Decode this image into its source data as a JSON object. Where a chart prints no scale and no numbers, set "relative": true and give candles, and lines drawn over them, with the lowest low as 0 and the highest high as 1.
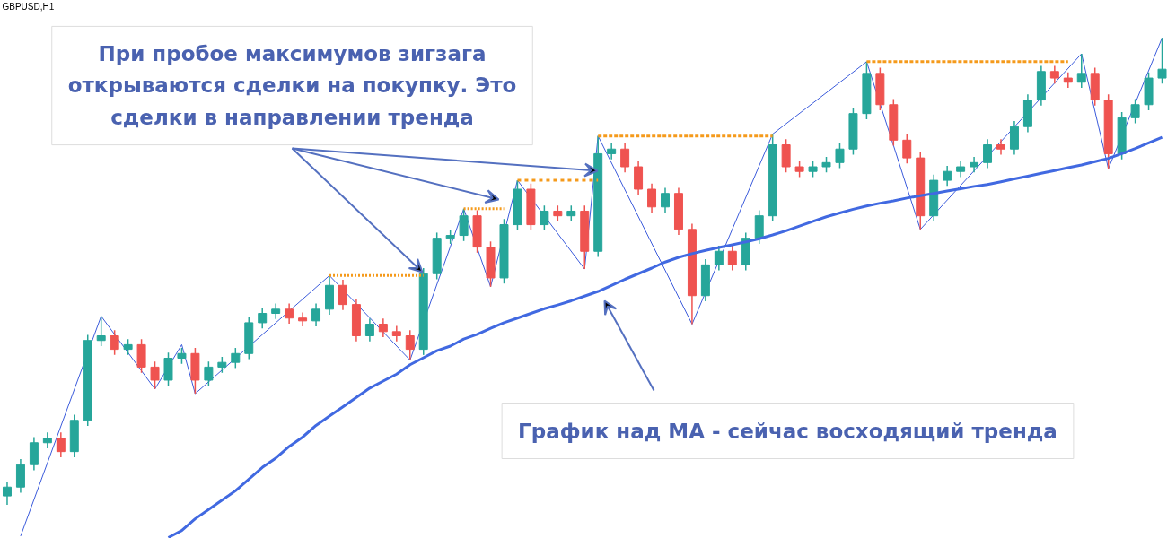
{
  "chart_data": {
    "type": "candlestick",
    "title": "GBPUSD,H1",
    "relative": true,
    "categories": [
      null,
      null,
      null,
      null,
      null,
      null,
      null,
      null,
      null,
      null,
      null,
      null,
      null,
      null,
      null,
      null,
      null,
      null,
      null,
      null,
      null,
      null,
      null,
      null,
      null,
      null,
      null,
      null,
      null,
      null,
      null,
      null,
      null,
      null,
      null,
      null,
      null,
      null,
      null,
      null,
      null,
      null,
      null,
      null,
      null,
      null,
      null,
      null,
      null,
      null,
      null,
      null,
      null,
      null,
      null,
      null,
      null,
      null,
      null,
      null,
      null,
      null,
      null,
      null,
      null,
      null,
      null,
      null,
      null,
      null,
      null,
      null,
      null,
      null,
      null,
      null,
      null,
      null,
      null,
      null,
      null,
      null,
      null,
      null,
      null,
      null,
      null
    ],
    "ohlc": [
      [
        0.019,
        0.048,
        0,
        0.038
      ],
      [
        0.038,
        0.098,
        0.026,
        0.086
      ],
      [
        0.086,
        0.145,
        0.074,
        0.133
      ],
      [
        0.133,
        0.155,
        0.121,
        0.143
      ],
      [
        0.143,
        0.155,
        0.102,
        0.114
      ],
      [
        0.114,
        0.193,
        0.102,
        0.181
      ],
      [
        0.181,
        0.364,
        0.169,
        0.352
      ],
      [
        0.352,
        0.404,
        0.34,
        0.362
      ],
      [
        0.362,
        0.374,
        0.321,
        0.333
      ],
      [
        0.333,
        0.355,
        0.321,
        0.343
      ],
      [
        0.343,
        0.355,
        0.283,
        0.295
      ],
      [
        0.295,
        0.307,
        0.248,
        0.267
      ],
      [
        0.267,
        0.326,
        0.255,
        0.314
      ],
      [
        0.314,
        0.336,
        0.302,
        0.324
      ],
      [
        0.324,
        0.336,
        0.238,
        0.267
      ],
      [
        0.267,
        0.307,
        0.255,
        0.295
      ],
      [
        0.295,
        0.317,
        0.283,
        0.305
      ],
      [
        0.305,
        0.336,
        0.293,
        0.324
      ],
      [
        0.324,
        0.402,
        0.312,
        0.39
      ],
      [
        0.39,
        0.422,
        0.378,
        0.41
      ],
      [
        0.41,
        0.431,
        0.398,
        0.419
      ],
      [
        0.419,
        0.431,
        0.388,
        0.4
      ],
      [
        0.4,
        0.412,
        0.382,
        0.394
      ],
      [
        0.394,
        0.431,
        0.382,
        0.419
      ],
      [
        0.419,
        0.491,
        0.407,
        0.47
      ],
      [
        0.47,
        0.482,
        0.417,
        0.429
      ],
      [
        0.429,
        0.441,
        0.35,
        0.362
      ],
      [
        0.362,
        0.399,
        0.35,
        0.387
      ],
      [
        0.387,
        0.399,
        0.359,
        0.371
      ],
      [
        0.371,
        0.383,
        0.35,
        0.362
      ],
      [
        0.362,
        0.374,
        0.31,
        0.333
      ],
      [
        0.333,
        0.507,
        0.321,
        0.495
      ],
      [
        0.495,
        0.583,
        0.483,
        0.571
      ],
      [
        0.571,
        0.589,
        0.559,
        0.577
      ],
      [
        0.577,
        0.634,
        0.565,
        0.619
      ],
      [
        0.619,
        0.631,
        0.54,
        0.552
      ],
      [
        0.552,
        0.564,
        0.467,
        0.486
      ],
      [
        0.486,
        0.612,
        0.474,
        0.6
      ],
      [
        0.6,
        0.695,
        0.588,
        0.676
      ],
      [
        0.676,
        0.688,
        0.588,
        0.6
      ],
      [
        0.6,
        0.641,
        0.588,
        0.629
      ],
      [
        0.629,
        0.641,
        0.607,
        0.619
      ],
      [
        0.619,
        0.641,
        0.607,
        0.629
      ],
      [
        0.629,
        0.641,
        0.505,
        0.543
      ],
      [
        0.543,
        0.79,
        0.531,
        0.752
      ],
      [
        0.752,
        0.774,
        0.74,
        0.762
      ],
      [
        0.762,
        0.774,
        0.712,
        0.724
      ],
      [
        0.724,
        0.736,
        0.664,
        0.676
      ],
      [
        0.676,
        0.688,
        0.626,
        0.638
      ],
      [
        0.638,
        0.679,
        0.626,
        0.667
      ],
      [
        0.667,
        0.679,
        0.578,
        0.59
      ],
      [
        0.59,
        0.602,
        0.387,
        0.448
      ],
      [
        0.448,
        0.526,
        0.436,
        0.514
      ],
      [
        0.514,
        0.555,
        0.502,
        0.543
      ],
      [
        0.543,
        0.555,
        0.502,
        0.514
      ],
      [
        0.514,
        0.583,
        0.502,
        0.571
      ],
      [
        0.571,
        0.631,
        0.559,
        0.619
      ],
      [
        0.619,
        0.794,
        0.607,
        0.771
      ],
      [
        0.771,
        0.783,
        0.712,
        0.724
      ],
      [
        0.724,
        0.736,
        0.702,
        0.714
      ],
      [
        0.714,
        0.736,
        0.702,
        0.724
      ],
      [
        0.724,
        0.745,
        0.712,
        0.733
      ],
      [
        0.733,
        0.774,
        0.721,
        0.762
      ],
      [
        0.762,
        0.85,
        0.75,
        0.838
      ],
      [
        0.838,
        0.949,
        0.826,
        0.924
      ],
      [
        0.924,
        0.936,
        0.845,
        0.857
      ],
      [
        0.857,
        0.869,
        0.769,
        0.781
      ],
      [
        0.781,
        0.793,
        0.731,
        0.743
      ],
      [
        0.743,
        0.755,
        0.59,
        0.619
      ],
      [
        0.619,
        0.707,
        0.607,
        0.695
      ],
      [
        0.695,
        0.726,
        0.683,
        0.714
      ],
      [
        0.714,
        0.736,
        0.702,
        0.724
      ],
      [
        0.724,
        0.745,
        0.712,
        0.733
      ],
      [
        0.733,
        0.783,
        0.721,
        0.771
      ],
      [
        0.771,
        0.783,
        0.75,
        0.762
      ],
      [
        0.762,
        0.822,
        0.75,
        0.81
      ],
      [
        0.81,
        0.879,
        0.798,
        0.867
      ],
      [
        0.867,
        0.94,
        0.855,
        0.928
      ],
      [
        0.928,
        0.94,
        0.902,
        0.914
      ],
      [
        0.914,
        0.926,
        0.893,
        0.905
      ],
      [
        0.905,
        0.966,
        0.893,
        0.924
      ],
      [
        0.924,
        0.936,
        0.855,
        0.867
      ],
      [
        0.867,
        0.879,
        0.72,
        0.752
      ],
      [
        0.752,
        0.841,
        0.74,
        0.829
      ],
      [
        0.829,
        0.869,
        0.817,
        0.857
      ],
      [
        0.857,
        0.926,
        0.845,
        0.914
      ],
      [
        0.914,
        1,
        0.902,
        0.933
      ]
    ],
    "colors": [
      "#26a69a",
      "#26a69a",
      "#26a69a",
      "#26a69a",
      "#ef5350",
      "#26a69a",
      "#26a69a",
      "#26a69a",
      "#ef5350",
      "#26a69a",
      "#ef5350",
      "#ef5350",
      "#26a69a",
      "#26a69a",
      "#ef5350",
      "#26a69a",
      "#26a69a",
      "#26a69a",
      "#26a69a",
      "#26a69a",
      "#26a69a",
      "#ef5350",
      "#ef5350",
      "#26a69a",
      "#26a69a",
      "#ef5350",
      "#ef5350",
      "#26a69a",
      "#ef5350",
      "#ef5350",
      "#ef5350",
      "#26a69a",
      "#26a69a",
      "#26a69a",
      "#26a69a",
      "#ef5350",
      "#ef5350",
      "#26a69a",
      "#26a69a",
      "#ef5350",
      "#26a69a",
      "#ef5350",
      "#26a69a",
      "#ef5350",
      "#26a69a",
      "#26a69a",
      "#ef5350",
      "#ef5350",
      "#ef5350",
      "#26a69a",
      "#ef5350",
      "#ef5350",
      "#26a69a",
      "#26a69a",
      "#ef5350",
      "#26a69a",
      "#26a69a",
      "#26a69a",
      "#ef5350",
      "#ef5350",
      "#26a69a",
      "#26a69a",
      "#26a69a",
      "#26a69a",
      "#26a69a",
      "#ef5350",
      "#ef5350",
      "#ef5350",
      "#ef5350",
      "#26a69a",
      "#26a69a",
      "#26a69a",
      "#26a69a",
      "#26a69a",
      "#ef5350",
      "#26a69a",
      "#26a69a",
      "#26a69a",
      "#ef5350",
      "#ef5350",
      "#26a69a",
      "#ef5350",
      "#ef5350",
      "#26a69a",
      "#26a69a",
      "#26a69a",
      "#26a69a"
    ],
    "series": [
      {
        "type": "line",
        "color": "#4169e1",
        "values": [
          null,
          null,
          null,
          null,
          null,
          null,
          null,
          null,
          null,
          null,
          null,
          null,
          -0.07,
          -0.055,
          -0.03,
          -0.01,
          0.01,
          0.03,
          0.055,
          0.08,
          0.1,
          0.125,
          0.145,
          0.17,
          0.19,
          0.21,
          0.23,
          0.25,
          0.265,
          0.28,
          0.3,
          0.315,
          0.33,
          0.34,
          0.355,
          0.365,
          0.378,
          0.39,
          0.4,
          0.41,
          0.42,
          0.428,
          0.437,
          0.447,
          0.457,
          0.47,
          0.483,
          0.495,
          0.507,
          0.52,
          0.53,
          0.538,
          0.545,
          0.551,
          0.557,
          0.563,
          0.57,
          0.578,
          0.587,
          0.597,
          0.607,
          0.617,
          0.625,
          0.633,
          0.64,
          0.646,
          0.651,
          0.657,
          0.662,
          0.667,
          0.672,
          0.677,
          0.682,
          0.686,
          0.692,
          0.698,
          0.704,
          0.71,
          0.716,
          0.722,
          0.728,
          0.735,
          0.742,
          0.752,
          0.763,
          0.775,
          0.787
        ]
      },
      {
        "type": "line",
        "color": "#3b5bdb",
        "values": [
          null,
          -0.067,
          null,
          null,
          null,
          null,
          null,
          0.404,
          null,
          null,
          null,
          0.248,
          null,
          0.343,
          0.238,
          null,
          null,
          null,
          null,
          null,
          null,
          null,
          null,
          null,
          0.491,
          null,
          null,
          null,
          null,
          null,
          0.31,
          null,
          null,
          null,
          0.634,
          null,
          0.467,
          null,
          0.695,
          null,
          null,
          null,
          null,
          0.505,
          0.79,
          null,
          null,
          null,
          null,
          null,
          null,
          0.387,
          null,
          null,
          null,
          null,
          null,
          0.794,
          null,
          null,
          null,
          null,
          null,
          null,
          0.949,
          null,
          null,
          null,
          0.59,
          null,
          null,
          null,
          null,
          null,
          null,
          null,
          null,
          null,
          null,
          null,
          0.966,
          null,
          0.72,
          null,
          null,
          null,
          1
        ]
      },
      {
        "type": "line",
        "color": "#f59a1b",
        "line_style": "dotted",
        "values": [
          null,
          null,
          null,
          null,
          null,
          null,
          null,
          null,
          null,
          null,
          null,
          null,
          null,
          null,
          null,
          null,
          null,
          null,
          null,
          null,
          null,
          null,
          null,
          null,
          0.491,
          0.491,
          0.491,
          0.491,
          0.491,
          0.491,
          0.491,
          0.491,
          null,
          null,
          null,
          null,
          null,
          null,
          null,
          null,
          null,
          null,
          null,
          null,
          null,
          null,
          null,
          null,
          null,
          null,
          null,
          null,
          null,
          null,
          null,
          null,
          null,
          null,
          null,
          null,
          null,
          null,
          null,
          null,
          null,
          null,
          null,
          null,
          null,
          null,
          null,
          null,
          null,
          null,
          null,
          null,
          null,
          null,
          null,
          null,
          null,
          null,
          null,
          null,
          null,
          null,
          null
        ]
      },
      {
        "type": "line",
        "color": "#f59a1b",
        "line_style": "dotted",
        "values": [
          null,
          null,
          null,
          null,
          null,
          null,
          null,
          null,
          null,
          null,
          null,
          null,
          null,
          null,
          null,
          null,
          null,
          null,
          null,
          null,
          null,
          null,
          null,
          null,
          null,
          null,
          null,
          null,
          null,
          null,
          null,
          null,
          null,
          null,
          0.634,
          0.634,
          0.634,
          0.634,
          null,
          null,
          null,
          null,
          null,
          null,
          null,
          null,
          null,
          null,
          null,
          null,
          null,
          null,
          null,
          null,
          null,
          null,
          null,
          null,
          null,
          null,
          null,
          null,
          null,
          null,
          null,
          null,
          null,
          null,
          null,
          null,
          null,
          null,
          null,
          null,
          null,
          null,
          null,
          null,
          null,
          null,
          null,
          null,
          null,
          null,
          null,
          null,
          null
        ]
      },
      {
        "type": "line",
        "color": "#f59a1b",
        "line_style": "dotted",
        "values": [
          null,
          null,
          null,
          null,
          null,
          null,
          null,
          null,
          null,
          null,
          null,
          null,
          null,
          null,
          null,
          null,
          null,
          null,
          null,
          null,
          null,
          null,
          null,
          null,
          null,
          null,
          null,
          null,
          null,
          null,
          null,
          null,
          null,
          null,
          null,
          null,
          null,
          null,
          0.695,
          0.695,
          0.695,
          0.695,
          0.695,
          0.695,
          0.695,
          null,
          null,
          null,
          null,
          null,
          null,
          null,
          null,
          null,
          null,
          null,
          null,
          null,
          null,
          null,
          null,
          null,
          null,
          null,
          null,
          null,
          null,
          null,
          null,
          null,
          null,
          null,
          null,
          null,
          null,
          null,
          null,
          null,
          null,
          null,
          null,
          null,
          null,
          null,
          null,
          null,
          null
        ]
      },
      {
        "type": "line",
        "color": "#f59a1b",
        "line_style": "dotted",
        "values": [
          null,
          null,
          null,
          null,
          null,
          null,
          null,
          null,
          null,
          null,
          null,
          null,
          null,
          null,
          null,
          null,
          null,
          null,
          null,
          null,
          null,
          null,
          null,
          null,
          null,
          null,
          null,
          null,
          null,
          null,
          null,
          null,
          null,
          null,
          null,
          null,
          null,
          null,
          null,
          null,
          null,
          null,
          null,
          null,
          0.79,
          0.79,
          0.79,
          0.79,
          0.79,
          0.79,
          0.79,
          0.79,
          0.79,
          0.79,
          0.79,
          0.79,
          0.79,
          0.79,
          null,
          null,
          null,
          null,
          null,
          null,
          null,
          null,
          null,
          null,
          null,
          null,
          null,
          null,
          null,
          null,
          null,
          null,
          null,
          null,
          null,
          null,
          null,
          null,
          null,
          null,
          null,
          null,
          null
        ]
      },
      {
        "type": "line",
        "color": "#f59a1b",
        "line_style": "dotted",
        "values": [
          null,
          null,
          null,
          null,
          null,
          null,
          null,
          null,
          null,
          null,
          null,
          null,
          null,
          null,
          null,
          null,
          null,
          null,
          null,
          null,
          null,
          null,
          null,
          null,
          null,
          null,
          null,
          null,
          null,
          null,
          null,
          null,
          null,
          null,
          null,
          null,
          null,
          null,
          null,
          null,
          null,
          null,
          null,
          null,
          null,
          null,
          null,
          null,
          null,
          null,
          null,
          null,
          null,
          null,
          null,
          null,
          null,
          null,
          null,
          null,
          null,
          null,
          null,
          null,
          0.949,
          0.949,
          0.949,
          0.949,
          0.949,
          0.949,
          0.949,
          0.949,
          0.949,
          0.949,
          0.949,
          0.949,
          0.949,
          0.949,
          0.949,
          0.949,
          null,
          null,
          null,
          null,
          null,
          null,
          null
        ]
      }
    ],
    "annotations": [
      "При пробое максимумов зигзага открываются сделки на покупку. Это сделки в направлении тренда",
      "График над MA - сейчас восходящий тренда"
    ],
    "grid": false
  }
}
